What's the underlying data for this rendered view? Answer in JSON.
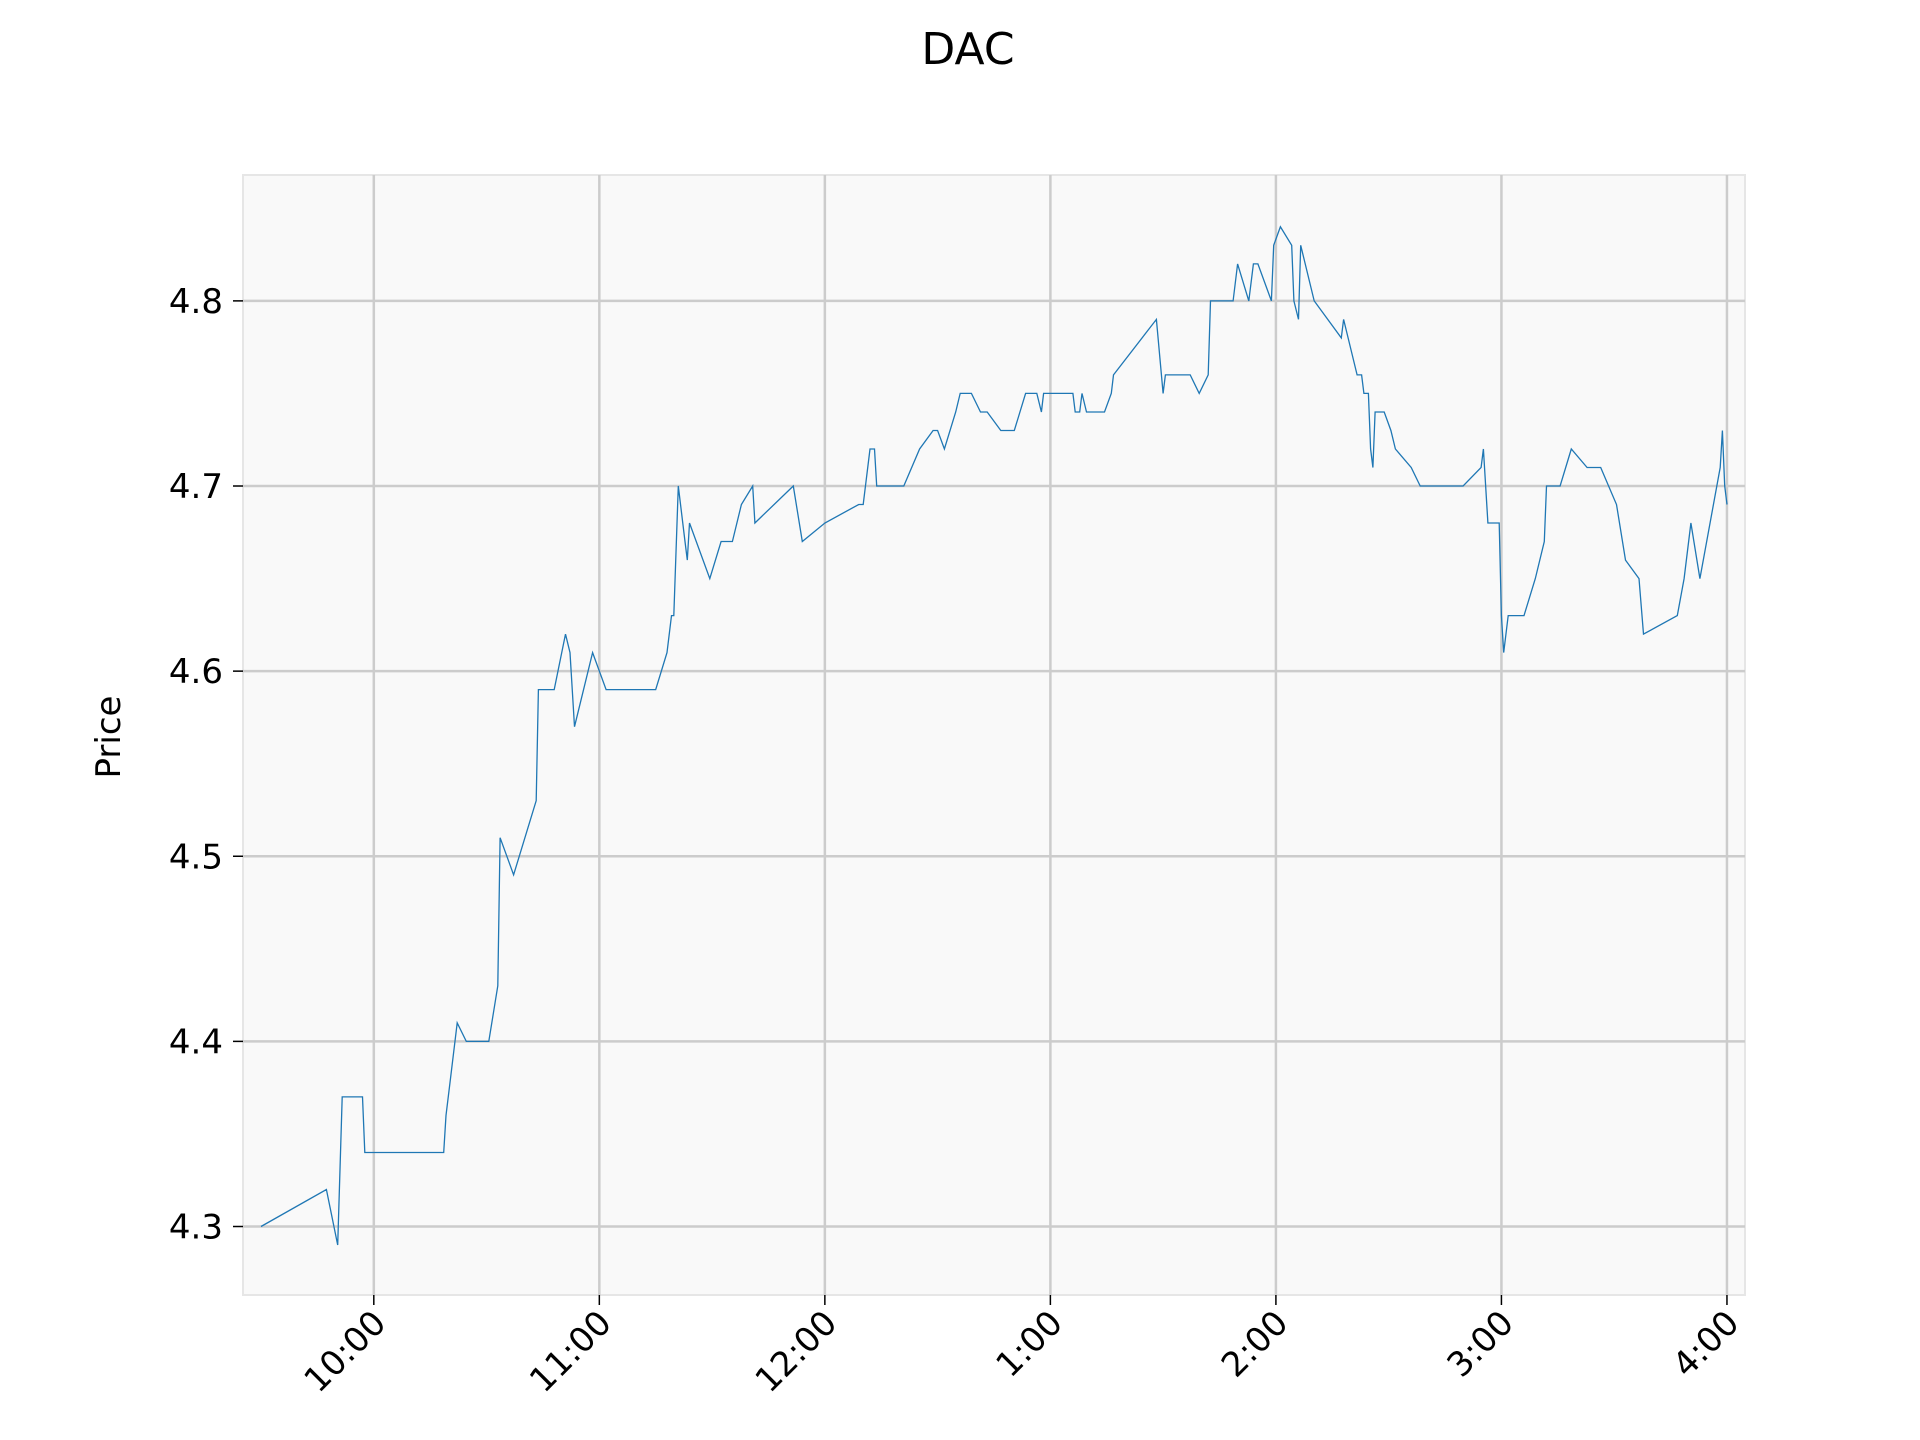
{
  "chart_data": {
    "type": "line",
    "title": "DAC",
    "xlabel": "",
    "ylabel": "Price",
    "xlim": [
      9.42,
      16.08
    ],
    "ylim": [
      4.263,
      4.868
    ],
    "grid": true,
    "x_ticks": [
      {
        "value": 10,
        "label": "10:00"
      },
      {
        "value": 11,
        "label": "11:00"
      },
      {
        "value": 12,
        "label": "12:00"
      },
      {
        "value": 13,
        "label": "1:00"
      },
      {
        "value": 14,
        "label": "2:00"
      },
      {
        "value": 15,
        "label": "3:00"
      },
      {
        "value": 16,
        "label": "4:00"
      }
    ],
    "y_ticks": [
      {
        "value": 4.3,
        "label": "4.3"
      },
      {
        "value": 4.4,
        "label": "4.4"
      },
      {
        "value": 4.5,
        "label": "4.5"
      },
      {
        "value": 4.6,
        "label": "4.6"
      },
      {
        "value": 4.7,
        "label": "4.7"
      },
      {
        "value": 4.8,
        "label": "4.8"
      }
    ],
    "colors": {
      "line": "#1f77b4",
      "plot_bg": "#f9f9f9",
      "grid": "#cccccc",
      "frame": "#e6e6e6"
    },
    "series": [
      {
        "points": [
          [
            9.5,
            4.3
          ],
          [
            9.79,
            4.32
          ],
          [
            9.84,
            4.29
          ],
          [
            9.86,
            4.37
          ],
          [
            9.95,
            4.37
          ],
          [
            9.96,
            4.34
          ],
          [
            10.31,
            4.34
          ],
          [
            10.32,
            4.36
          ],
          [
            10.34,
            4.38
          ],
          [
            10.37,
            4.41
          ],
          [
            10.41,
            4.4
          ],
          [
            10.51,
            4.4
          ],
          [
            10.55,
            4.43
          ],
          [
            10.56,
            4.51
          ],
          [
            10.62,
            4.49
          ],
          [
            10.72,
            4.53
          ],
          [
            10.73,
            4.59
          ],
          [
            10.8,
            4.59
          ],
          [
            10.85,
            4.62
          ],
          [
            10.87,
            4.61
          ],
          [
            10.89,
            4.57
          ],
          [
            10.97,
            4.61
          ],
          [
            11.03,
            4.59
          ],
          [
            11.25,
            4.59
          ],
          [
            11.3,
            4.61
          ],
          [
            11.32,
            4.63
          ],
          [
            11.33,
            4.63
          ],
          [
            11.35,
            4.7
          ],
          [
            11.38,
            4.67
          ],
          [
            11.39,
            4.66
          ],
          [
            11.4,
            4.68
          ],
          [
            11.49,
            4.65
          ],
          [
            11.54,
            4.67
          ],
          [
            11.59,
            4.67
          ],
          [
            11.63,
            4.69
          ],
          [
            11.68,
            4.7
          ],
          [
            11.69,
            4.68
          ],
          [
            11.86,
            4.7
          ],
          [
            11.9,
            4.67
          ],
          [
            12.0,
            4.68
          ],
          [
            12.15,
            4.69
          ],
          [
            12.17,
            4.69
          ],
          [
            12.2,
            4.72
          ],
          [
            12.22,
            4.72
          ],
          [
            12.23,
            4.7
          ],
          [
            12.35,
            4.7
          ],
          [
            12.42,
            4.72
          ],
          [
            12.48,
            4.73
          ],
          [
            12.5,
            4.73
          ],
          [
            12.53,
            4.72
          ],
          [
            12.58,
            4.74
          ],
          [
            12.6,
            4.75
          ],
          [
            12.65,
            4.75
          ],
          [
            12.69,
            4.74
          ],
          [
            12.72,
            4.74
          ],
          [
            12.78,
            4.73
          ],
          [
            12.84,
            4.73
          ],
          [
            12.89,
            4.75
          ],
          [
            12.94,
            4.75
          ],
          [
            12.96,
            4.74
          ],
          [
            12.97,
            4.75
          ],
          [
            13.1,
            4.75
          ],
          [
            13.11,
            4.74
          ],
          [
            13.13,
            4.74
          ],
          [
            13.14,
            4.75
          ],
          [
            13.16,
            4.74
          ],
          [
            13.24,
            4.74
          ],
          [
            13.27,
            4.75
          ],
          [
            13.28,
            4.76
          ],
          [
            13.47,
            4.79
          ],
          [
            13.5,
            4.75
          ],
          [
            13.51,
            4.76
          ],
          [
            13.62,
            4.76
          ],
          [
            13.66,
            4.75
          ],
          [
            13.7,
            4.76
          ],
          [
            13.71,
            4.8
          ],
          [
            13.81,
            4.8
          ],
          [
            13.83,
            4.82
          ],
          [
            13.88,
            4.8
          ],
          [
            13.9,
            4.82
          ],
          [
            13.92,
            4.82
          ],
          [
            13.98,
            4.8
          ],
          [
            13.99,
            4.83
          ],
          [
            14.02,
            4.84
          ],
          [
            14.07,
            4.83
          ],
          [
            14.08,
            4.8
          ],
          [
            14.1,
            4.79
          ],
          [
            14.11,
            4.83
          ],
          [
            14.17,
            4.8
          ],
          [
            14.29,
            4.78
          ],
          [
            14.3,
            4.79
          ],
          [
            14.36,
            4.76
          ],
          [
            14.38,
            4.76
          ],
          [
            14.39,
            4.75
          ],
          [
            14.41,
            4.75
          ],
          [
            14.42,
            4.72
          ],
          [
            14.43,
            4.71
          ],
          [
            14.44,
            4.74
          ],
          [
            14.48,
            4.74
          ],
          [
            14.51,
            4.73
          ],
          [
            14.53,
            4.72
          ],
          [
            14.6,
            4.71
          ],
          [
            14.64,
            4.7
          ],
          [
            14.83,
            4.7
          ],
          [
            14.91,
            4.71
          ],
          [
            14.92,
            4.72
          ],
          [
            14.94,
            4.68
          ],
          [
            14.99,
            4.68
          ],
          [
            15.0,
            4.63
          ],
          [
            15.01,
            4.61
          ],
          [
            15.03,
            4.63
          ],
          [
            15.1,
            4.63
          ],
          [
            15.15,
            4.65
          ],
          [
            15.19,
            4.67
          ],
          [
            15.2,
            4.7
          ],
          [
            15.26,
            4.7
          ],
          [
            15.31,
            4.72
          ],
          [
            15.38,
            4.71
          ],
          [
            15.44,
            4.71
          ],
          [
            15.51,
            4.69
          ],
          [
            15.55,
            4.66
          ],
          [
            15.61,
            4.65
          ],
          [
            15.63,
            4.62
          ],
          [
            15.78,
            4.63
          ],
          [
            15.81,
            4.65
          ],
          [
            15.84,
            4.68
          ],
          [
            15.88,
            4.65
          ],
          [
            15.97,
            4.71
          ],
          [
            15.98,
            4.73
          ],
          [
            15.99,
            4.7
          ],
          [
            16.0,
            4.69
          ]
        ]
      }
    ]
  }
}
